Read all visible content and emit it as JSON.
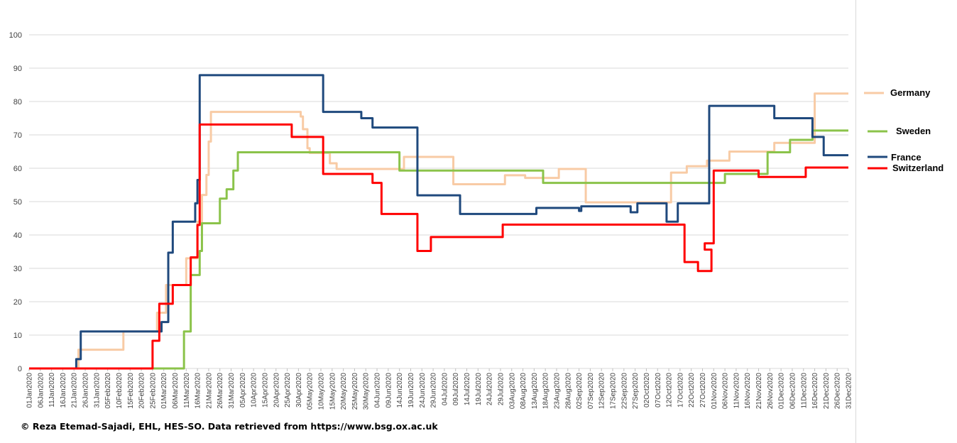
{
  "credit": "© Reza Etemad-Sajadi, EHL, HES-SO. Data retrieved from https://www.bsg.ox.ac.uk",
  "chart_data": {
    "type": "line",
    "ylim": [
      0,
      100
    ],
    "yticks": [
      0,
      10,
      20,
      30,
      40,
      50,
      60,
      70,
      80,
      90,
      100
    ],
    "grid": true,
    "legend_position": "right",
    "x_start": "2020-01-01",
    "x_end": "2020-12-31",
    "x_tick_labels": [
      "01Jan2020",
      "06Jan2020",
      "11Jan2020",
      "16Jan2020",
      "21Jan2020",
      "26Jan2020",
      "31Jan2020",
      "05Feb2020",
      "10Feb2020",
      "15Feb2020",
      "20Feb2020",
      "25Feb2020",
      "01Mar2020",
      "06Mar2020",
      "11Mar2020",
      "16Mar2020",
      "21Mar2020",
      "26Mar2020",
      "31Mar2020",
      "05Apr2020",
      "10Apr2020",
      "15Apr2020",
      "20Apr2020",
      "25Apr2020",
      "30Apr2020",
      "05May2020",
      "10May2020",
      "15May2020",
      "20May2020",
      "25May2020",
      "30May2020",
      "04Jun2020",
      "09Jun2020",
      "14Jun2020",
      "19Jun2020",
      "24Jun2020",
      "29Jun2020",
      "04Jul2020",
      "09Jul2020",
      "14Jul2020",
      "19Jul2020",
      "24Jul2020",
      "29Jul2020",
      "03Aug2020",
      "08Aug2020",
      "13Aug2020",
      "18Aug2020",
      "23Aug2020",
      "28Aug2020",
      "02Sep2020",
      "07Sep2020",
      "12Sep2020",
      "17Sep2020",
      "22Sep2020",
      "27Sep2020",
      "02Oct2020",
      "07Oct2020",
      "12Oct2020",
      "17Oct2020",
      "22Oct2020",
      "27Oct2020",
      "01Nov2020",
      "06Nov2020",
      "11Nov2020",
      "16Nov2020",
      "21Nov2020",
      "26Nov2020",
      "01Dec2020",
      "06Dec2020",
      "11Dec2020",
      "16Dec2020",
      "21Dec2020",
      "26Dec2020",
      "31Dec2020"
    ],
    "series": [
      {
        "name": "Germany",
        "color": "#f8cba5",
        "steps": [
          [
            "2020-01-01",
            0
          ],
          [
            "2020-01-23",
            5.6
          ],
          [
            "2020-02-12",
            11.1
          ],
          [
            "2020-02-27",
            16.7
          ],
          [
            "2020-03-02",
            25
          ],
          [
            "2020-03-11",
            33
          ],
          [
            "2020-03-16",
            44
          ],
          [
            "2020-03-18",
            52
          ],
          [
            "2020-03-20",
            58
          ],
          [
            "2020-03-21",
            68
          ],
          [
            "2020-03-22",
            76.9
          ],
          [
            "2020-05-01",
            75.5
          ],
          [
            "2020-05-02",
            71.7
          ],
          [
            "2020-05-04",
            66
          ],
          [
            "2020-05-05",
            64.6
          ],
          [
            "2020-05-14",
            61.5
          ],
          [
            "2020-05-17",
            59.8
          ],
          [
            "2020-06-16",
            63.4
          ],
          [
            "2020-07-08",
            55.2
          ],
          [
            "2020-07-31",
            57.9
          ],
          [
            "2020-08-09",
            57.1
          ],
          [
            "2020-08-24",
            59.8
          ],
          [
            "2020-09-05",
            49.8
          ],
          [
            "2020-10-12",
            49.8
          ],
          [
            "2020-10-13",
            58.7
          ],
          [
            "2020-10-20",
            60.6
          ],
          [
            "2020-10-29",
            62.3
          ],
          [
            "2020-11-05",
            62.3
          ],
          [
            "2020-11-08",
            65
          ],
          [
            "2020-11-28",
            67.6
          ],
          [
            "2020-12-16",
            82.4
          ]
        ]
      },
      {
        "name": "Sweden",
        "color": "#8bc34a",
        "steps": [
          [
            "2020-01-01",
            0
          ],
          [
            "2020-03-10",
            11.1
          ],
          [
            "2020-03-13",
            28
          ],
          [
            "2020-03-17",
            35.2
          ],
          [
            "2020-03-18",
            43.5
          ],
          [
            "2020-03-26",
            50.9
          ],
          [
            "2020-03-29",
            53.7
          ],
          [
            "2020-04-01",
            59.3
          ],
          [
            "2020-04-03",
            64.8
          ],
          [
            "2020-06-14",
            59.3
          ],
          [
            "2020-08-17",
            55.6
          ],
          [
            "2020-11-06",
            58.3
          ],
          [
            "2020-11-25",
            64.8
          ],
          [
            "2020-12-05",
            68.5
          ],
          [
            "2020-12-15",
            71.3
          ]
        ]
      },
      {
        "name": "France",
        "color": "#1f497d",
        "steps": [
          [
            "2020-01-01",
            0
          ],
          [
            "2020-01-22",
            2.8
          ],
          [
            "2020-01-24",
            11.1
          ],
          [
            "2020-02-29",
            13.9
          ],
          [
            "2020-03-03",
            34.7
          ],
          [
            "2020-03-05",
            44
          ],
          [
            "2020-03-15",
            49.5
          ],
          [
            "2020-03-16",
            56.5
          ],
          [
            "2020-03-17",
            87.9
          ],
          [
            "2020-05-11",
            76.9
          ],
          [
            "2020-05-28",
            75
          ],
          [
            "2020-06-02",
            72.2
          ],
          [
            "2020-06-22",
            51.9
          ],
          [
            "2020-07-11",
            46.3
          ],
          [
            "2020-08-14",
            48.1
          ],
          [
            "2020-09-02",
            47.2
          ],
          [
            "2020-09-03",
            48.6
          ],
          [
            "2020-09-25",
            46.8
          ],
          [
            "2020-09-28",
            49.5
          ],
          [
            "2020-10-11",
            44
          ],
          [
            "2020-10-16",
            49.5
          ],
          [
            "2020-10-30",
            78.7
          ],
          [
            "2020-11-28",
            75
          ],
          [
            "2020-12-15",
            69.4
          ],
          [
            "2020-12-20",
            63.9
          ]
        ]
      },
      {
        "name": "Switzerland",
        "color": "#ff0000",
        "steps": [
          [
            "2020-01-01",
            0
          ],
          [
            "2020-02-25",
            8.3
          ],
          [
            "2020-02-28",
            19.4
          ],
          [
            "2020-03-05",
            25
          ],
          [
            "2020-03-13",
            33.3
          ],
          [
            "2020-03-16",
            43
          ],
          [
            "2020-03-17",
            73.1
          ],
          [
            "2020-04-27",
            69.4
          ],
          [
            "2020-05-11",
            58.3
          ],
          [
            "2020-06-02",
            55.6
          ],
          [
            "2020-06-06",
            46.3
          ],
          [
            "2020-06-22",
            35.2
          ],
          [
            "2020-06-28",
            39.4
          ],
          [
            "2020-07-30",
            43.1
          ],
          [
            "2020-10-19",
            31.9
          ],
          [
            "2020-10-25",
            29.2
          ],
          [
            "2020-10-31",
            35.6
          ],
          [
            "2020-10-28",
            37.5
          ],
          [
            "2020-11-01",
            59.3
          ],
          [
            "2020-11-21",
            57.4
          ],
          [
            "2020-12-12",
            60.2
          ]
        ]
      }
    ]
  }
}
